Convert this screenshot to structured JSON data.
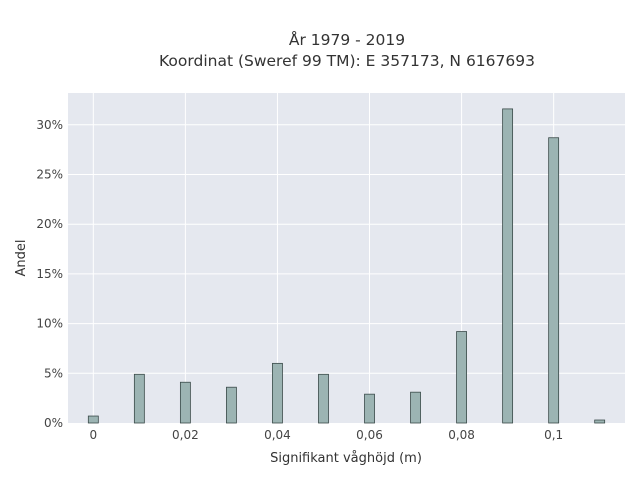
{
  "chart_data": {
    "type": "bar",
    "title_line1": "År 1979 - 2019",
    "title_line2": "Koordinat (Sweref 99 TM): E 357173, N 6167693",
    "xlabel": "Signifikant våghöjd (m)",
    "ylabel": "Andel",
    "x": [
      0,
      0.01,
      0.02,
      0.03,
      0.04,
      0.05,
      0.06,
      0.07,
      0.08,
      0.09,
      0.1,
      0.11
    ],
    "values": [
      0.7,
      4.9,
      4.1,
      3.6,
      6.0,
      4.9,
      2.9,
      3.1,
      9.2,
      31.6,
      28.7,
      0.3
    ],
    "xticks": [
      0,
      0.02,
      0.04,
      0.06,
      0.08,
      0.1
    ],
    "xtick_labels": [
      "0",
      "0,02",
      "0,04",
      "0,06",
      "0,08",
      "0,1"
    ],
    "yticks": [
      0,
      5,
      10,
      15,
      20,
      25,
      30
    ],
    "ytick_labels": [
      "0%",
      "5%",
      "10%",
      "15%",
      "20%",
      "25%",
      "30%"
    ],
    "xlim": [
      -0.0055,
      0.1155
    ],
    "ylim": [
      0,
      33.2
    ],
    "grid": true,
    "colors": {
      "bar_fill": "#9cb4b3",
      "bar_stroke": "#3a4a49",
      "plot_bg": "#e5e8ef",
      "grid": "#ffffff"
    }
  }
}
